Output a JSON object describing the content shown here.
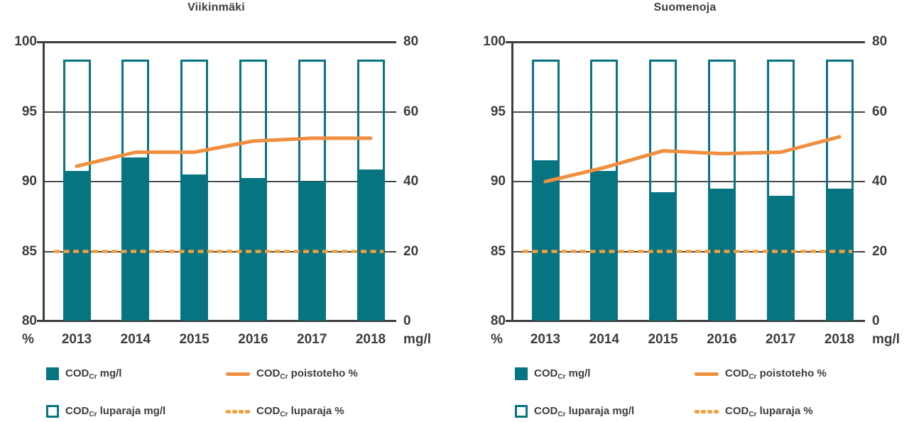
{
  "colors": {
    "teal": "#077482",
    "orange": "#EF8F3F",
    "orange_dash": "#F0A03C",
    "axis": "#3D3D3D",
    "grid": "#4A4A4A",
    "text": "#3D3D3D",
    "background": "#FFFFFF"
  },
  "chart_data": [
    {
      "type": "bar+line",
      "title": "Viikinmäki",
      "categories": [
        "2013",
        "2014",
        "2015",
        "2016",
        "2017",
        "2018"
      ],
      "left_axis": {
        "unit": "%",
        "min": 80,
        "max": 100,
        "ticks": [
          "100",
          "95",
          "90",
          "85",
          "80"
        ]
      },
      "right_axis": {
        "unit": "mg/l",
        "min": 0,
        "max": 80,
        "ticks": [
          "80",
          "60",
          "40",
          "20",
          "0"
        ]
      },
      "grid": "horizontal",
      "legend_position": "bottom",
      "series": [
        {
          "id": "cod_mgl",
          "type": "bar",
          "axis": "right",
          "label_parts": [
            {
              "t": "COD",
              "sub": false
            },
            {
              "t": "Cr",
              "sub": true
            },
            {
              "t": " mg/l",
              "sub": false
            }
          ],
          "values": [
            43,
            47,
            42,
            41,
            40,
            43.5
          ]
        },
        {
          "id": "luparaja_mgl",
          "type": "bar_outline",
          "axis": "right",
          "label_parts": [
            {
              "t": "COD",
              "sub": false
            },
            {
              "t": "Cr",
              "sub": true
            },
            {
              "t": " luparaja mg/l",
              "sub": false
            }
          ],
          "value": 75
        },
        {
          "id": "poistoteho_pct",
          "type": "line",
          "axis": "left",
          "label_parts": [
            {
              "t": "COD",
              "sub": false
            },
            {
              "t": "Cr",
              "sub": true
            },
            {
              "t": " poistoteho %",
              "sub": false
            }
          ],
          "values": [
            91.1,
            92.1,
            92.1,
            92.9,
            93.1,
            93.1
          ]
        },
        {
          "id": "luparaja_pct",
          "type": "line_dashed",
          "axis": "left",
          "label_parts": [
            {
              "t": "COD",
              "sub": false
            },
            {
              "t": "Cr",
              "sub": true
            },
            {
              "t": " luparaja %",
              "sub": false
            }
          ],
          "value": 85
        }
      ]
    },
    {
      "type": "bar+line",
      "title": "Suomenoja",
      "categories": [
        "2013",
        "2014",
        "2015",
        "2016",
        "2017",
        "2018"
      ],
      "left_axis": {
        "unit": "%",
        "min": 80,
        "max": 100,
        "ticks": [
          "100",
          "95",
          "90",
          "85",
          "80"
        ]
      },
      "right_axis": {
        "unit": "mg/l",
        "min": 0,
        "max": 80,
        "ticks": [
          "80",
          "60",
          "40",
          "20",
          "0"
        ]
      },
      "grid": "horizontal",
      "legend_position": "bottom",
      "series": [
        {
          "id": "cod_mgl",
          "type": "bar",
          "axis": "right",
          "label_parts": [
            {
              "t": "COD",
              "sub": false
            },
            {
              "t": "Cr",
              "sub": true
            },
            {
              "t": " mg/l",
              "sub": false
            }
          ],
          "values": [
            46,
            43,
            37,
            38,
            36,
            38
          ]
        },
        {
          "id": "luparaja_mgl",
          "type": "bar_outline",
          "axis": "right",
          "label_parts": [
            {
              "t": "COD",
              "sub": false
            },
            {
              "t": "Cr",
              "sub": true
            },
            {
              "t": " luparaja mg/l",
              "sub": false
            }
          ],
          "value": 75
        },
        {
          "id": "poistoteho_pct",
          "type": "line",
          "axis": "left",
          "label_parts": [
            {
              "t": "COD",
              "sub": false
            },
            {
              "t": "Cr",
              "sub": true
            },
            {
              "t": " poistoteho %",
              "sub": false
            }
          ],
          "values": [
            90,
            91,
            92.2,
            92,
            92.1,
            93.2
          ]
        },
        {
          "id": "luparaja_pct",
          "type": "line_dashed",
          "axis": "left",
          "label_parts": [
            {
              "t": "COD",
              "sub": false
            },
            {
              "t": "Cr",
              "sub": true
            },
            {
              "t": " luparaja %",
              "sub": false
            }
          ],
          "value": 85
        }
      ]
    }
  ]
}
